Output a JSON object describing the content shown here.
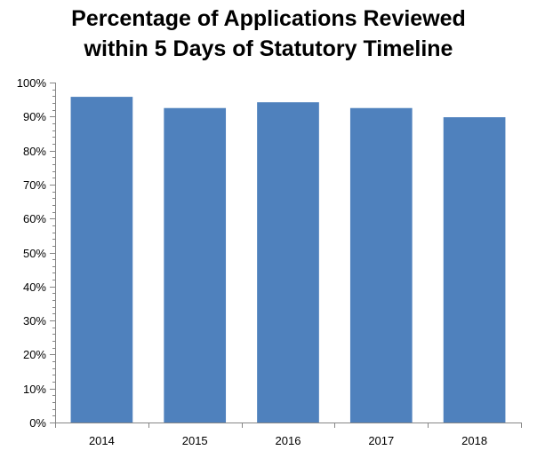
{
  "chart_data": {
    "type": "bar",
    "title_lines": [
      "Percentage of Applications Reviewed",
      "within 5 Days of Statutory Timeline"
    ],
    "categories": [
      "2014",
      "2015",
      "2016",
      "2017",
      "2018"
    ],
    "values": [
      95.8,
      92.5,
      94.2,
      92.5,
      89.8
    ],
    "value_unit": "%",
    "ylim": [
      0,
      100
    ],
    "yticks": [
      0,
      10,
      20,
      30,
      40,
      50,
      60,
      70,
      80,
      90,
      100
    ],
    "ytick_labels": [
      "0%",
      "10%",
      "20%",
      "30%",
      "40%",
      "50%",
      "60%",
      "70%",
      "80%",
      "90%",
      "100%"
    ],
    "xlabel": "",
    "ylabel": "",
    "grid": false,
    "legend": "none",
    "bar_color": "#4F81BD",
    "axis_color": "#868686"
  }
}
